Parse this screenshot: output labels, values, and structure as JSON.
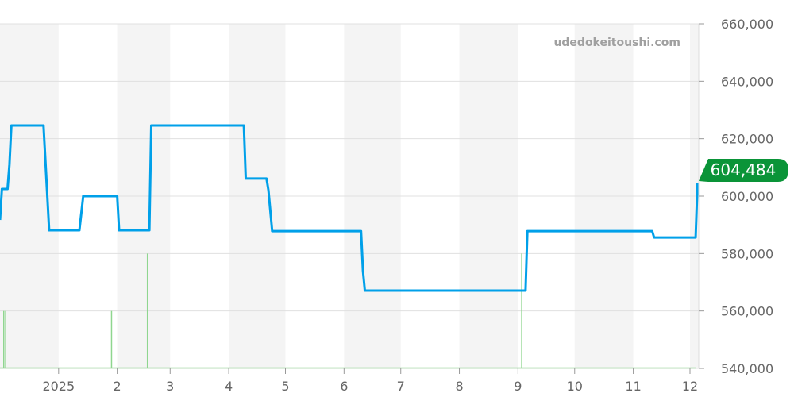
{
  "watermark": "udedokeitoushi.com",
  "current_price_label": "604,484",
  "colors": {
    "price_line": "#00a0e9",
    "volume_bar": "#8fd68f",
    "badge": "#0a9438",
    "band": "#f4f4f4",
    "grid": "#e0e0e0"
  },
  "chart_data": {
    "type": "line",
    "ylim": [
      540000,
      660000
    ],
    "y_ticks": [
      540000,
      560000,
      580000,
      600000,
      620000,
      640000,
      660000
    ],
    "y_tick_labels": [
      "540,000",
      "560,000",
      "580,000",
      "600,000",
      "620,000",
      "640,000",
      "660,000"
    ],
    "x_range": [
      "2024-12-01",
      "2025-12-06"
    ],
    "x_ticks": [
      "2025-01-01",
      "2025-02-01",
      "2025-03-01",
      "2025-04-01",
      "2025-05-01",
      "2025-06-01",
      "2025-07-01",
      "2025-08-01",
      "2025-09-01",
      "2025-10-01",
      "2025-11-01",
      "2025-12-01"
    ],
    "x_tick_labels": [
      "2025",
      "2",
      "3",
      "4",
      "5",
      "6",
      "7",
      "8",
      "9",
      "10",
      "11",
      "12"
    ],
    "grid": true,
    "alternating_month_bands": true,
    "series": [
      {
        "points": [
          [
            "2024-12-01",
            591700
          ],
          [
            "2024-12-02",
            602500
          ],
          [
            "2024-12-05",
            602500
          ],
          [
            "2024-12-06",
            611000
          ],
          [
            "2024-12-07",
            624600
          ],
          [
            "2024-12-24",
            624600
          ],
          [
            "2024-12-27",
            588100
          ],
          [
            "2025-01-12",
            588100
          ],
          [
            "2025-01-14",
            600000
          ],
          [
            "2025-02-01",
            600000
          ],
          [
            "2025-02-02",
            588100
          ],
          [
            "2025-02-18",
            588100
          ],
          [
            "2025-02-19",
            624600
          ],
          [
            "2025-04-09",
            624600
          ],
          [
            "2025-04-10",
            606100
          ],
          [
            "2025-04-21",
            606100
          ],
          [
            "2025-04-22",
            602000
          ],
          [
            "2025-04-24",
            587800
          ],
          [
            "2025-06-10",
            587800
          ],
          [
            "2025-06-11",
            574000
          ],
          [
            "2025-06-12",
            567100
          ],
          [
            "2025-09-05",
            567100
          ],
          [
            "2025-09-06",
            587800
          ],
          [
            "2025-11-11",
            587800
          ],
          [
            "2025-11-12",
            585600
          ],
          [
            "2025-12-04",
            585600
          ],
          [
            "2025-12-05",
            604484
          ]
        ]
      }
    ],
    "volume": [
      [
        "2024-12-03",
        1
      ],
      [
        "2024-12-04",
        1
      ],
      [
        "2025-01-29",
        1
      ],
      [
        "2025-02-17",
        2
      ],
      [
        "2025-09-03",
        2
      ]
    ]
  }
}
